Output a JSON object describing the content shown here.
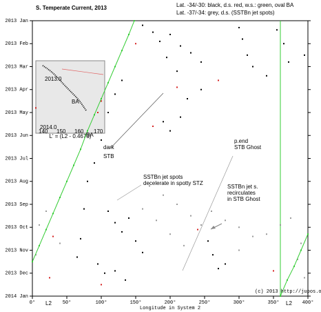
{
  "chart_data": {
    "type": "scatter",
    "title": "S. Temperate Current, 2013",
    "legend_lines": [
      "Lat. -34/-30:   black, d.s. red, w.s.: green, oval BA",
      "Lat. -37/-34:  grey, d.s. (SSTBn jet spots)"
    ],
    "x_label": "Longitude in System 2",
    "xlim": [
      0,
      400
    ],
    "xticks": [
      {
        "value": 0,
        "label": "0°"
      },
      {
        "value": 50,
        "label": "50°"
      },
      {
        "value": 100,
        "label": "100°"
      },
      {
        "value": 150,
        "label": "150°"
      },
      {
        "value": 200,
        "label": "200°"
      },
      {
        "value": 250,
        "label": "250°"
      },
      {
        "value": 300,
        "label": "300°"
      },
      {
        "value": 350,
        "label": "350°"
      },
      {
        "value": 400,
        "label": "400°"
      }
    ],
    "ylim": [
      0,
      12
    ],
    "invert_y": true,
    "yticks": [
      {
        "value": 0,
        "label": "2013 Jan"
      },
      {
        "value": 1,
        "label": "2013 Feb"
      },
      {
        "value": 2,
        "label": "2013 Mar"
      },
      {
        "value": 3,
        "label": "2013 Apr"
      },
      {
        "value": 4,
        "label": "2013 May"
      },
      {
        "value": 5,
        "label": "2013 Jun"
      },
      {
        "value": 6,
        "label": "2013 Jul"
      },
      {
        "value": 7,
        "label": "2013 Aug"
      },
      {
        "value": 8,
        "label": "2013 Sep"
      },
      {
        "value": 9,
        "label": "2013 Oct"
      },
      {
        "value": 10,
        "label": "2013 Nov"
      },
      {
        "value": 11,
        "label": "2013 Dec"
      },
      {
        "value": 12,
        "label": "2014 Jan"
      }
    ],
    "series": [
      {
        "color": "#000000",
        "x": [
          160,
          175,
          185,
          200,
          215,
          230,
          245,
          195,
          210,
          300,
          305,
          312,
          320,
          340,
          355,
          365,
          372,
          245,
          225,
          190,
          200,
          215,
          130,
          120,
          110,
          100,
          90,
          80,
          75,
          70,
          65,
          110,
          120,
          130,
          140,
          150,
          160,
          95,
          105,
          120,
          135,
          255,
          262,
          270,
          280,
          395
        ],
        "values": [
          0.2,
          0.5,
          0.9,
          0.6,
          1.1,
          1.4,
          1.8,
          1.6,
          2.2,
          0.3,
          0.8,
          1.5,
          2.0,
          2.4,
          0.4,
          1.0,
          1.8,
          3.0,
          3.4,
          4.4,
          4.8,
          4.2,
          2.6,
          3.2,
          4.0,
          5.2,
          6.2,
          7.0,
          8.2,
          9.5,
          10.3,
          8.3,
          8.8,
          9.2,
          8.6,
          9.6,
          10.1,
          10.6,
          11.0,
          10.9,
          11.3,
          9.6,
          10.2,
          10.8,
          10.6,
          1.5
        ]
      },
      {
        "color": "#d62020",
        "x": [
          150,
          210,
          100,
          95,
          175,
          5,
          350,
          100,
          30,
          270,
          25,
          240
        ],
        "values": [
          1.0,
          2.9,
          3.5,
          4.0,
          4.6,
          3.8,
          10.9,
          11.5,
          9.4,
          2.6,
          11.2,
          9.1
        ]
      },
      {
        "color": "#999999",
        "x": [
          170,
          190,
          210,
          230,
          245,
          260,
          280,
          300,
          320,
          340,
          360,
          375,
          20,
          10,
          5,
          40,
          160,
          180,
          200,
          220,
          390,
          385,
          395,
          300
        ],
        "values": [
          7.2,
          7.6,
          8.0,
          8.5,
          8.9,
          8.3,
          8.7,
          9.0,
          9.4,
          9.3,
          8.9,
          8.6,
          8.3,
          8.9,
          10.2,
          9.7,
          8.2,
          8.7,
          9.3,
          9.8,
          9.7,
          10.4,
          11.2,
          10.0
        ]
      },
      {
        "color": "#33cc33",
        "line": true,
        "x": [
          148,
          140,
          130,
          120,
          110,
          100,
          90,
          80,
          70,
          60,
          50,
          40,
          30,
          20,
          10,
          0,
          null,
          400,
          390,
          380,
          370,
          360
        ],
        "values": [
          0,
          0.6,
          1.3,
          2.0,
          2.7,
          3.4,
          4.1,
          4.8,
          5.6,
          6.3,
          7.0,
          7.7,
          8.4,
          9.1,
          9.8,
          10.5,
          null,
          9.3,
          10,
          10.7,
          11.3,
          12
        ]
      }
    ],
    "annotations": [
      "BA",
      "dark",
      "STB",
      "p.end",
      "STB Ghost",
      "SSTBn jet spots",
      "decelerate in spotty STZ",
      "SSTBn jet s.",
      "recirculates",
      "in STB Ghost",
      "(c) 2013 http://jupos.org",
      "L2",
      "L2"
    ],
    "inset": {
      "top_label": "2013.0",
      "bottom_label": "2014.0",
      "annotation": "BA",
      "xticks": [
        "140",
        "150",
        "160",
        "170"
      ],
      "x_label": "L' = (L2 - 0.467d)"
    }
  }
}
